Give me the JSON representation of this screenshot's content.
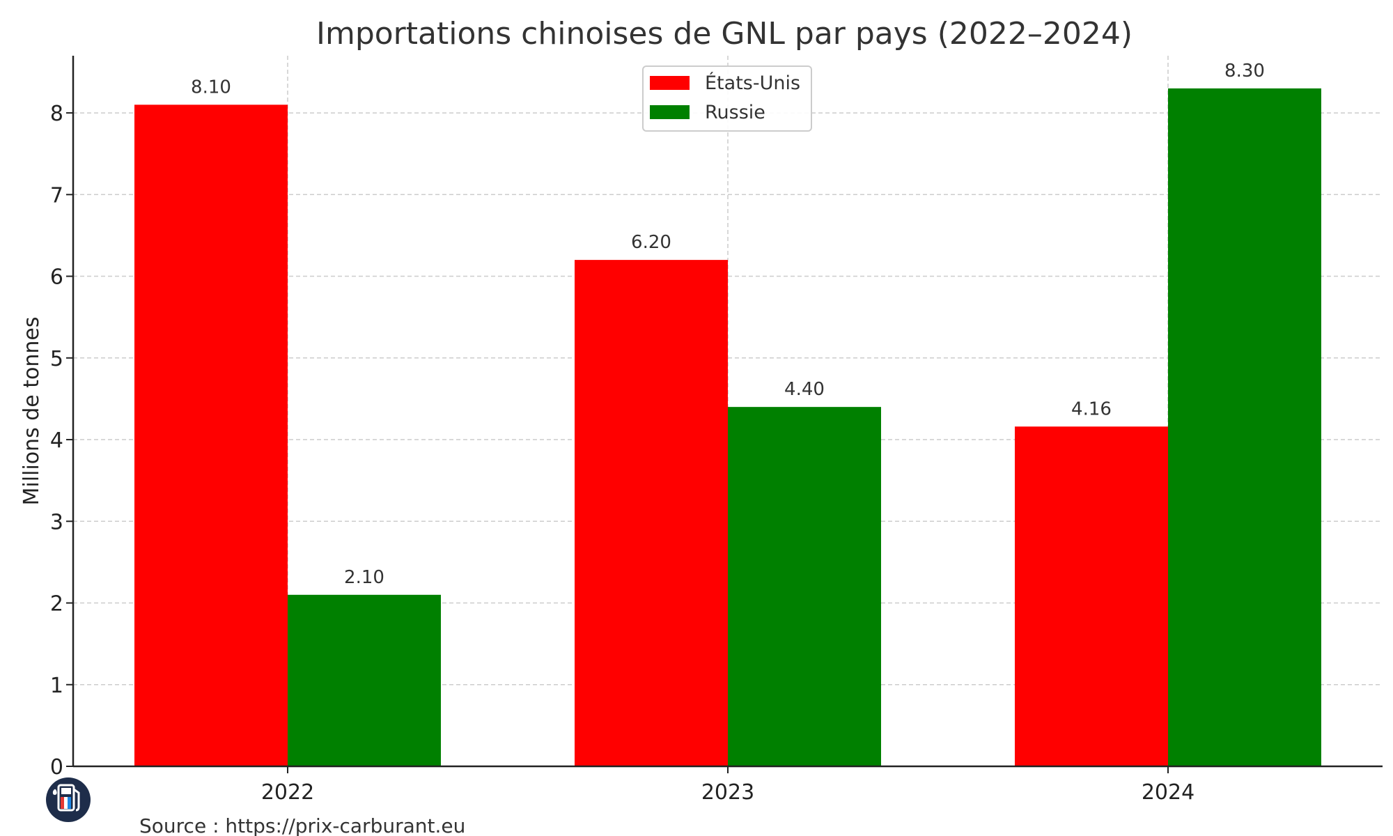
{
  "chart_data": {
    "type": "bar",
    "title": "Importations chinoises de GNL par pays (2022–2024)",
    "xlabel": "",
    "ylabel": "Millions de tonnes",
    "categories": [
      "2022",
      "2023",
      "2024"
    ],
    "series": [
      {
        "name": "États-Unis",
        "color": "#ff0000",
        "values": [
          8.1,
          6.2,
          4.16
        ],
        "labels": [
          "8.10",
          "6.20",
          "4.16"
        ]
      },
      {
        "name": "Russie",
        "color": "#008000",
        "values": [
          2.1,
          4.4,
          8.3
        ],
        "labels": [
          "2.10",
          "4.40",
          "8.30"
        ]
      }
    ],
    "ylim": [
      0,
      8.7
    ],
    "yticks": [
      "0",
      "1",
      "2",
      "3",
      "4",
      "5",
      "6",
      "7",
      "8"
    ],
    "grid": true,
    "legend_position": "top-center"
  },
  "source": "Source : https://prix-carburant.eu",
  "logo": {
    "icon": "fuel-pump-icon",
    "background": "#1e2d4a"
  }
}
